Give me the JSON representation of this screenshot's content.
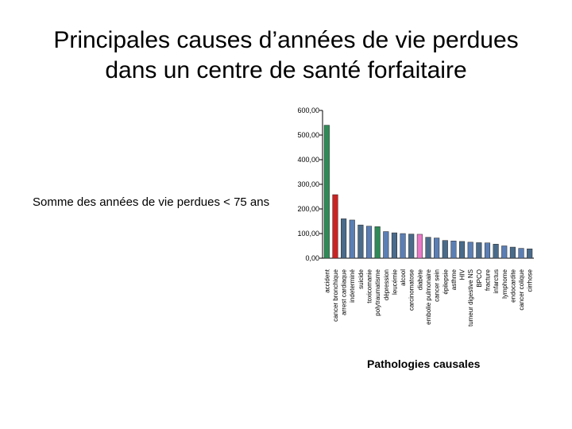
{
  "slide": {
    "title_line1": "Principales causes d’années de vie perdues",
    "title_line2": "dans un centre de santé forfaitaire"
  },
  "chart_data": {
    "type": "bar",
    "title": "",
    "ylabel": "Somme des années de vie perdues < 75 ans",
    "xlabel": "Pathologies causales",
    "ylim": [
      0,
      600
    ],
    "yticks": [
      "0,00",
      "100,00",
      "200,00",
      "300,00",
      "400,00",
      "500,00",
      "600,00"
    ],
    "categories": [
      "accident",
      "cancer bronchique",
      "arrest cardiaque",
      "indeterminé",
      "suicide",
      "toxicomanie",
      "polytraumatisme",
      "dépression",
      "leucémie",
      "alcool",
      "carcinomatose",
      "diabète",
      "embolie pulmonaire",
      "cancer sein",
      "épilepsie",
      "asthme",
      "HIV",
      "tumeur digestive NS",
      "BPCO",
      "fracture",
      "infarctus",
      "lymphome",
      "endocardite",
      "cancer colique",
      "cirrhose"
    ],
    "values": [
      540,
      258,
      160,
      155,
      135,
      130,
      128,
      108,
      103,
      100,
      98,
      97,
      85,
      82,
      72,
      70,
      68,
      65,
      63,
      62,
      57,
      50,
      45,
      40,
      38
    ],
    "colors": [
      "#2e8b57",
      "#cc2222",
      "#4a6b8a",
      "#5b7fb5",
      "#4a6b8a",
      "#5b7fb5",
      "#2e8b57",
      "#5b7fb5",
      "#4a6b8a",
      "#5b7fb5",
      "#4a6b8a",
      "#e87ac8",
      "#4a6b8a",
      "#5b7fb5",
      "#4a6b8a",
      "#5b7fb5",
      "#4a6b8a",
      "#5b7fb5",
      "#4a6b8a",
      "#5b7fb5",
      "#4a6b8a",
      "#5b7fb5",
      "#4a6b8a",
      "#5b7fb5",
      "#4a6b8a"
    ],
    "grid": false,
    "legend": "none"
  }
}
